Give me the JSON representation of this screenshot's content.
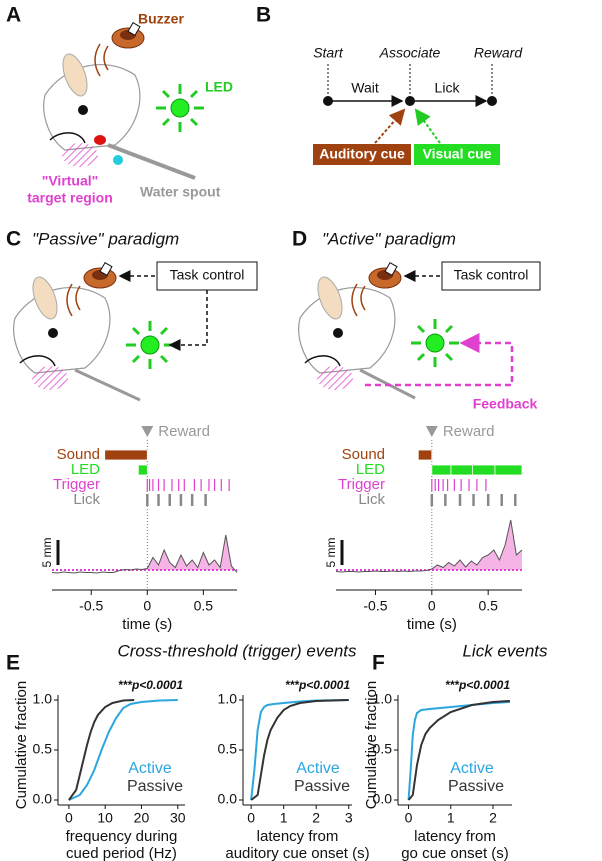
{
  "panels": {
    "A": {
      "label": "A",
      "buzzer": "Buzzer",
      "led": "LED",
      "target": [
        "\"Virtual\"",
        "target region"
      ],
      "spout": "Water spout"
    },
    "B": {
      "label": "B",
      "start": "Start",
      "associate": "Associate",
      "reward": "Reward",
      "wait": "Wait",
      "lick": "Lick",
      "auditory": "Auditory cue",
      "visual": "Visual cue"
    },
    "C": {
      "label": "C",
      "title": "\"Passive\" paradigm",
      "task": "Task control"
    },
    "D": {
      "label": "D",
      "title": "\"Active\" paradigm",
      "task": "Task control",
      "feedback": "Feedback"
    },
    "E": {
      "label": "E",
      "title": "Cross-threshold (trigger) events"
    },
    "F": {
      "label": "F"
    }
  },
  "chart_data": [
    {
      "type": "raster",
      "xlim": [
        -0.85,
        0.8
      ],
      "xticks": [
        -0.5,
        0,
        0.5
      ],
      "xlabel": "time (s)",
      "reward": "Reward",
      "ylim": [
        -3,
        9
      ],
      "threshold": 0,
      "threshold_color": "#e040d0",
      "fill": "#f5b3e6",
      "scalebar": {
        "value": 5,
        "label": "5 mm"
      },
      "rows": [
        {
          "name": "Sound",
          "color": "#a0420f",
          "spans": [
            [
              -0.38,
              0
            ]
          ]
        },
        {
          "name": "LED",
          "color": "#22dd22",
          "spans": [
            [
              -0.08,
              0
            ]
          ]
        },
        {
          "name": "Trigger",
          "color": "#e040d0",
          "events": [
            0,
            0.02,
            0.05,
            0.1,
            0.15,
            0.22,
            0.28,
            0.33,
            0.42,
            0.48,
            0.55,
            0.6,
            0.66,
            0.73
          ]
        },
        {
          "name": "Lick",
          "color": "#888888",
          "events": [
            0,
            0.1,
            0.2,
            0.3,
            0.4,
            0.52
          ]
        }
      ],
      "trace": {
        "color": "#555555",
        "x": [
          -0.85,
          -0.8,
          -0.75,
          -0.7,
          -0.65,
          -0.6,
          -0.55,
          -0.5,
          -0.45,
          -0.4,
          -0.35,
          -0.3,
          -0.25,
          -0.2,
          -0.15,
          -0.1,
          -0.05,
          0,
          0.05,
          0.1,
          0.15,
          0.2,
          0.25,
          0.3,
          0.35,
          0.4,
          0.45,
          0.5,
          0.55,
          0.6,
          0.65,
          0.7,
          0.75,
          0.8
        ],
        "values": [
          -0.5,
          -0.6,
          -0.4,
          -0.5,
          -0.6,
          -0.4,
          -0.5,
          -0.5,
          -0.6,
          -0.4,
          -0.5,
          -0.5,
          -0.1,
          0.1,
          0,
          0.2,
          0.1,
          0.3,
          2.5,
          1,
          4,
          1.5,
          0.5,
          3,
          0.8,
          2,
          0.5,
          3.5,
          1,
          2,
          0.5,
          7,
          0.8,
          -0.5
        ]
      }
    },
    {
      "type": "raster",
      "xlim": [
        -0.85,
        0.8
      ],
      "xticks": [
        -0.5,
        0,
        0.5
      ],
      "xlabel": "time (s)",
      "reward": "Reward",
      "ylim": [
        -3,
        13
      ],
      "threshold": 0,
      "threshold_color": "#e040d0",
      "fill": "#f5b3e6",
      "scalebar": {
        "value": 5,
        "label": "5 mm"
      },
      "rows": [
        {
          "name": "Sound",
          "color": "#a0420f",
          "spans": [
            [
              -0.12,
              0
            ]
          ]
        },
        {
          "name": "LED",
          "color": "#22dd22",
          "spans": [
            [
              0,
              0.17
            ],
            [
              0.17,
              0.36
            ],
            [
              0.36,
              0.56
            ],
            [
              0.56,
              0.8
            ]
          ]
        },
        {
          "name": "Trigger",
          "color": "#e040d0",
          "events": [
            0,
            0.03,
            0.06,
            0.1,
            0.14,
            0.2,
            0.26,
            0.33,
            0.4,
            0.48
          ]
        },
        {
          "name": "Lick",
          "color": "#888888",
          "events": [
            0,
            0.12,
            0.25,
            0.37,
            0.5,
            0.62,
            0.74
          ]
        }
      ],
      "trace": {
        "color": "#555555",
        "x": [
          -0.85,
          -0.8,
          -0.75,
          -0.7,
          -0.65,
          -0.6,
          -0.55,
          -0.5,
          -0.45,
          -0.4,
          -0.35,
          -0.3,
          -0.25,
          -0.2,
          -0.15,
          -0.1,
          -0.05,
          0,
          0.05,
          0.1,
          0.15,
          0.2,
          0.25,
          0.3,
          0.35,
          0.4,
          0.45,
          0.5,
          0.55,
          0.6,
          0.65,
          0.7,
          0.75,
          0.8
        ],
        "values": [
          -0.3,
          -0.4,
          -0.3,
          -0.3,
          -0.4,
          -0.3,
          -0.3,
          -0.2,
          -0.3,
          -0.3,
          -0.2,
          -0.3,
          -0.2,
          -0.3,
          -0.2,
          -0.2,
          -0.1,
          0.2,
          1,
          0.5,
          1.5,
          0.8,
          2,
          0.6,
          1.8,
          1,
          2.5,
          3,
          4,
          2,
          5,
          10,
          3,
          4
        ]
      }
    },
    {
      "type": "cdf",
      "annotation": "***p<0.0001",
      "ylabel": "Cumulative fraction",
      "xlabel": [
        "frequency during",
        "cued period (Hz)"
      ],
      "xlim": [
        -3,
        32
      ],
      "xticks": [
        0,
        10,
        20,
        30
      ],
      "ylim": [
        -0.05,
        1.05
      ],
      "yticks": [
        {
          "value": 0,
          "label": "0.0"
        },
        {
          "value": 0.5,
          "label": "0.5"
        },
        {
          "value": 1,
          "label": "1.0"
        }
      ],
      "series": [
        {
          "name": "Active",
          "color": "#2aa7df",
          "x": [
            0,
            3,
            5,
            7,
            9,
            11,
            13,
            15,
            17,
            20,
            25,
            30
          ],
          "values": [
            0,
            0.05,
            0.15,
            0.3,
            0.5,
            0.68,
            0.82,
            0.92,
            0.96,
            0.98,
            0.995,
            1
          ]
        },
        {
          "name": "Passive",
          "color": "#333333",
          "x": [
            0,
            2,
            3,
            4,
            5,
            6,
            7,
            8,
            10,
            12,
            15,
            18
          ],
          "values": [
            0,
            0.1,
            0.25,
            0.4,
            0.55,
            0.68,
            0.78,
            0.85,
            0.93,
            0.97,
            0.995,
            1
          ]
        }
      ]
    },
    {
      "type": "cdf",
      "annotation": "***p<0.0001",
      "xlabel": [
        "latency from",
        "auditory cue onset (s)"
      ],
      "xlim": [
        -0.25,
        3.1
      ],
      "xticks": [
        0,
        1,
        2,
        3
      ],
      "ylim": [
        -0.05,
        1.05
      ],
      "yticks": [
        {
          "value": 0,
          "label": "0.0"
        },
        {
          "value": 0.5,
          "label": "0.5"
        },
        {
          "value": 1,
          "label": "1.0"
        }
      ],
      "series": [
        {
          "name": "Active",
          "color": "#2aa7df",
          "x": [
            0,
            0.1,
            0.2,
            0.3,
            0.4,
            0.5,
            0.7,
            1,
            1.5,
            2,
            3
          ],
          "values": [
            0,
            0.3,
            0.7,
            0.88,
            0.93,
            0.95,
            0.96,
            0.97,
            0.985,
            0.995,
            1
          ]
        },
        {
          "name": "Passive",
          "color": "#333333",
          "x": [
            0,
            0.2,
            0.3,
            0.4,
            0.5,
            0.6,
            0.8,
            1,
            1.2,
            1.5,
            2,
            3
          ],
          "values": [
            0,
            0.05,
            0.25,
            0.45,
            0.6,
            0.7,
            0.82,
            0.9,
            0.94,
            0.97,
            0.99,
            1
          ]
        }
      ]
    },
    {
      "type": "cdf",
      "title": "Lick events",
      "annotation": "***p<0.0001",
      "ylabel": "Cumulative fraction",
      "xlabel": [
        "latency from",
        "go cue onset (s)"
      ],
      "xlim": [
        -0.25,
        2.45
      ],
      "xticks": [
        0,
        1,
        2
      ],
      "ylim": [
        -0.05,
        1.05
      ],
      "yticks": [
        {
          "value": 0,
          "label": "0.0"
        },
        {
          "value": 0.5,
          "label": "0.5"
        },
        {
          "value": 1,
          "label": "1.0"
        }
      ],
      "series": [
        {
          "name": "Active",
          "color": "#2aa7df",
          "x": [
            0,
            0.05,
            0.1,
            0.15,
            0.2,
            0.3,
            0.5,
            1,
            1.5,
            2,
            2.4
          ],
          "values": [
            0,
            0.3,
            0.65,
            0.8,
            0.87,
            0.9,
            0.91,
            0.93,
            0.95,
            0.97,
            0.98
          ]
        },
        {
          "name": "Passive",
          "color": "#333333",
          "x": [
            0,
            0.1,
            0.15,
            0.2,
            0.3,
            0.4,
            0.5,
            0.7,
            1,
            1.5,
            2,
            2.4
          ],
          "values": [
            0,
            0.05,
            0.2,
            0.35,
            0.55,
            0.66,
            0.72,
            0.8,
            0.88,
            0.95,
            0.98,
            0.99
          ]
        }
      ]
    }
  ]
}
